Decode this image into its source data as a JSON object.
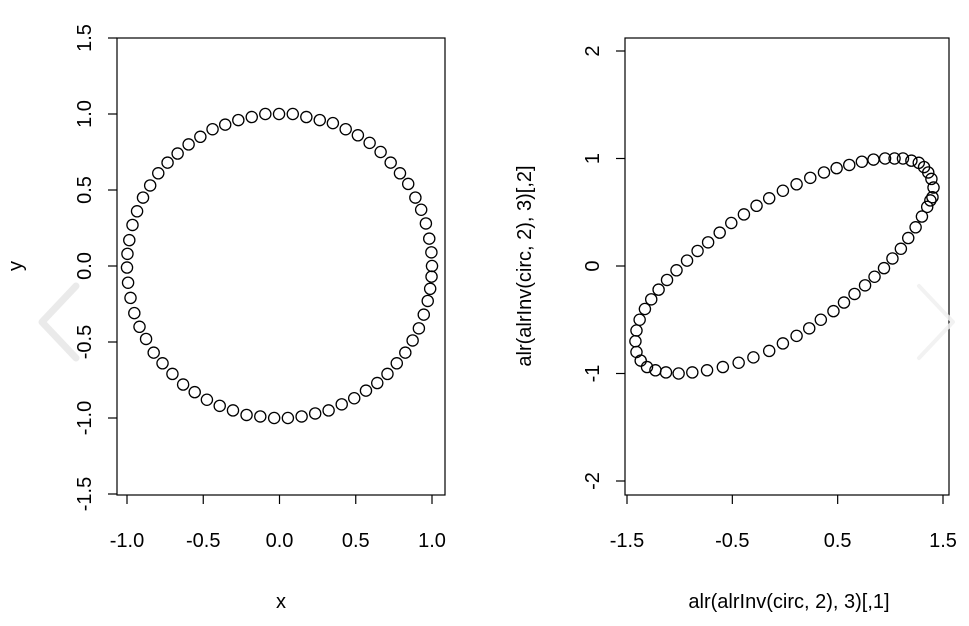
{
  "chart_data": [
    {
      "type": "scatter",
      "title": "",
      "xlabel": "x",
      "ylabel": "y",
      "xlim": [
        -1.0,
        1.0
      ],
      "ylim": [
        -1.5,
        1.5
      ],
      "xticks": [
        "-1.0",
        "-0.5",
        "0.0",
        "0.5",
        "1.0"
      ],
      "yticks": [
        "-1.5",
        "-1.0",
        "-0.5",
        "0.0",
        "0.5",
        "1.0",
        "1.5"
      ],
      "grid": false,
      "marker": "open-circle",
      "series": [
        {
          "points": [
            [
              1.0,
              0.0
            ],
            [
              0.996,
              0.09
            ],
            [
              0.982,
              0.18
            ],
            [
              0.96,
              0.28
            ],
            [
              0.929,
              0.37
            ],
            [
              0.891,
              0.45
            ],
            [
              0.844,
              0.54
            ],
            [
              0.79,
              0.61
            ],
            [
              0.729,
              0.68
            ],
            [
              0.663,
              0.75
            ],
            [
              0.591,
              0.81
            ],
            [
              0.514,
              0.86
            ],
            [
              0.434,
              0.9
            ],
            [
              0.35,
              0.94
            ],
            [
              0.264,
              0.96
            ],
            [
              0.176,
              0.98
            ],
            [
              0.087,
              1.0
            ],
            [
              -0.003,
              1.0
            ],
            [
              -0.093,
              1.0
            ],
            [
              -0.182,
              0.98
            ],
            [
              -0.27,
              0.96
            ],
            [
              -0.356,
              0.93
            ],
            [
              -0.439,
              0.9
            ],
            [
              -0.519,
              0.85
            ],
            [
              -0.596,
              0.8
            ],
            [
              -0.668,
              0.74
            ],
            [
              -0.734,
              0.68
            ],
            [
              -0.795,
              0.61
            ],
            [
              -0.848,
              0.53
            ],
            [
              -0.895,
              0.45
            ],
            [
              -0.934,
              0.36
            ],
            [
              -0.964,
              0.27
            ],
            [
              -0.985,
              0.17
            ],
            [
              -0.997,
              0.08
            ],
            [
              -1.0,
              -0.01
            ],
            [
              -0.993,
              -0.11
            ],
            [
              -0.977,
              -0.21
            ],
            [
              -0.952,
              -0.31
            ],
            [
              -0.918,
              -0.4
            ],
            [
              -0.875,
              -0.48
            ],
            [
              -0.825,
              -0.57
            ],
            [
              -0.767,
              -0.64
            ],
            [
              -0.702,
              -0.71
            ],
            [
              -0.632,
              -0.78
            ],
            [
              -0.556,
              -0.83
            ],
            [
              -0.476,
              -0.88
            ],
            [
              -0.392,
              -0.92
            ],
            [
              -0.305,
              -0.95
            ],
            [
              -0.216,
              -0.98
            ],
            [
              -0.126,
              -0.99
            ],
            [
              -0.035,
              -1.0
            ],
            [
              0.055,
              -1.0
            ],
            [
              0.145,
              -0.99
            ],
            [
              0.234,
              -0.97
            ],
            [
              0.322,
              -0.95
            ],
            [
              0.408,
              -0.91
            ],
            [
              0.49,
              -0.87
            ],
            [
              0.567,
              -0.82
            ],
            [
              0.641,
              -0.77
            ],
            [
              0.708,
              -0.71
            ],
            [
              0.769,
              -0.64
            ],
            [
              0.825,
              -0.57
            ],
            [
              0.873,
              -0.49
            ],
            [
              0.914,
              -0.41
            ],
            [
              0.946,
              -0.32
            ],
            [
              0.972,
              -0.23
            ],
            [
              0.988,
              -0.15
            ],
            [
              0.997,
              -0.07
            ]
          ]
        }
      ]
    },
    {
      "type": "scatter",
      "title": "",
      "xlabel": "alr(alrInv(circ, 2), 3)[,1]",
      "ylabel": "alr(alrInv(circ, 2), 3)[,2]",
      "xlim": [
        -1.5,
        1.5
      ],
      "ylim": [
        -2,
        2
      ],
      "xticks": [
        "-1.5",
        "-0.5",
        "0.5",
        "1.5"
      ],
      "yticks": [
        "-2",
        "-1",
        "0",
        "1",
        "2"
      ],
      "grid": false,
      "marker": "open-circle",
      "series": [
        {
          "points": [
            [
              1.4,
              0.64
            ],
            [
              1.41,
              0.73
            ],
            [
              1.39,
              0.81
            ],
            [
              1.36,
              0.87
            ],
            [
              1.32,
              0.92
            ],
            [
              1.27,
              0.96
            ],
            [
              1.2,
              0.98
            ],
            [
              1.12,
              1.0
            ],
            [
              1.04,
              1.0
            ],
            [
              0.95,
              1.0
            ],
            [
              0.84,
              0.99
            ],
            [
              0.73,
              0.97
            ],
            [
              0.61,
              0.94
            ],
            [
              0.49,
              0.91
            ],
            [
              0.37,
              0.87
            ],
            [
              0.24,
              0.82
            ],
            [
              0.11,
              0.76
            ],
            [
              -0.02,
              0.7
            ],
            [
              -0.15,
              0.63
            ],
            [
              -0.27,
              0.56
            ],
            [
              -0.39,
              0.48
            ],
            [
              -0.51,
              0.4
            ],
            [
              -0.62,
              0.31
            ],
            [
              -0.73,
              0.22
            ],
            [
              -0.83,
              0.14
            ],
            [
              -0.93,
              0.05
            ],
            [
              -1.03,
              -0.04
            ],
            [
              -1.12,
              -0.13
            ],
            [
              -1.2,
              -0.22
            ],
            [
              -1.27,
              -0.31
            ],
            [
              -1.33,
              -0.4
            ],
            [
              -1.38,
              -0.5
            ],
            [
              -1.41,
              -0.6
            ],
            [
              -1.42,
              -0.7
            ],
            [
              -1.41,
              -0.8
            ],
            [
              -1.37,
              -0.88
            ],
            [
              -1.31,
              -0.94
            ],
            [
              -1.23,
              -0.97
            ],
            [
              -1.13,
              -0.99
            ],
            [
              -1.01,
              -1.0
            ],
            [
              -0.88,
              -0.99
            ],
            [
              -0.74,
              -0.97
            ],
            [
              -0.59,
              -0.94
            ],
            [
              -0.44,
              -0.9
            ],
            [
              -0.3,
              -0.85
            ],
            [
              -0.15,
              -0.79
            ],
            [
              -0.02,
              -0.72
            ],
            [
              0.11,
              -0.65
            ],
            [
              0.23,
              -0.58
            ],
            [
              0.34,
              -0.5
            ],
            [
              0.46,
              -0.42
            ],
            [
              0.56,
              -0.34
            ],
            [
              0.66,
              -0.26
            ],
            [
              0.76,
              -0.18
            ],
            [
              0.85,
              -0.1
            ],
            [
              0.94,
              -0.02
            ],
            [
              1.02,
              0.07
            ],
            [
              1.1,
              0.16
            ],
            [
              1.17,
              0.26
            ],
            [
              1.24,
              0.36
            ],
            [
              1.3,
              0.46
            ],
            [
              1.35,
              0.55
            ],
            [
              1.38,
              0.61
            ]
          ]
        }
      ]
    }
  ]
}
